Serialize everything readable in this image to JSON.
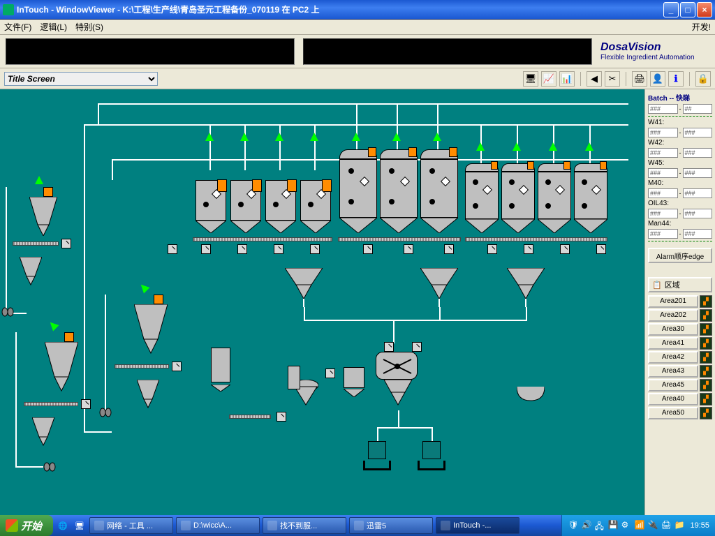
{
  "colors": {
    "canvas_bg": "#008080",
    "xp_blue_top": "#1b58d1",
    "xp_blue_mid": "#3d7ef0",
    "xp_chrome": "#ece9d8",
    "brand": "#000080",
    "tank_body": "#bfbfbf",
    "orange": "#ff8c00",
    "green": "#00ff00"
  },
  "titlebar": {
    "title": "InTouch - WindowViewer - K:\\工程\\生产线\\青岛圣元工程备份_070119 在 PC2 上"
  },
  "menubar": {
    "file": "文件(F)",
    "logic": "逻辑(L)",
    "special": "特别(S)",
    "dev": "开发!"
  },
  "brand": {
    "name": "DosaVision",
    "tag": "Flexible Ingredient Automation"
  },
  "toolbar": {
    "screen": "Title Screen"
  },
  "side": {
    "batch_head": "Batch -- 快睇",
    "w41": "W41:",
    "w42": "W42:",
    "w45": "W45:",
    "m40": "M40:",
    "oil43": "OIL43:",
    "man44": "Man44:",
    "hash": "###",
    "hash_alt": "##",
    "dash": "-",
    "ack": "Alarm顺序edge",
    "area_head": "区域",
    "areas": [
      "Area201",
      "Area202",
      "Area30",
      "Area41",
      "Area42",
      "Area43",
      "Area45",
      "Area40",
      "Area50"
    ]
  },
  "taskbar": {
    "start": "开始",
    "tasks": [
      {
        "label": "网络 - 工具 ..."
      },
      {
        "label": "D:\\wicc\\A..."
      },
      {
        "label": "找不到服..."
      },
      {
        "label": "迅雷5"
      },
      {
        "label": "InTouch -...",
        "active": true
      }
    ],
    "clock": "19:55"
  }
}
